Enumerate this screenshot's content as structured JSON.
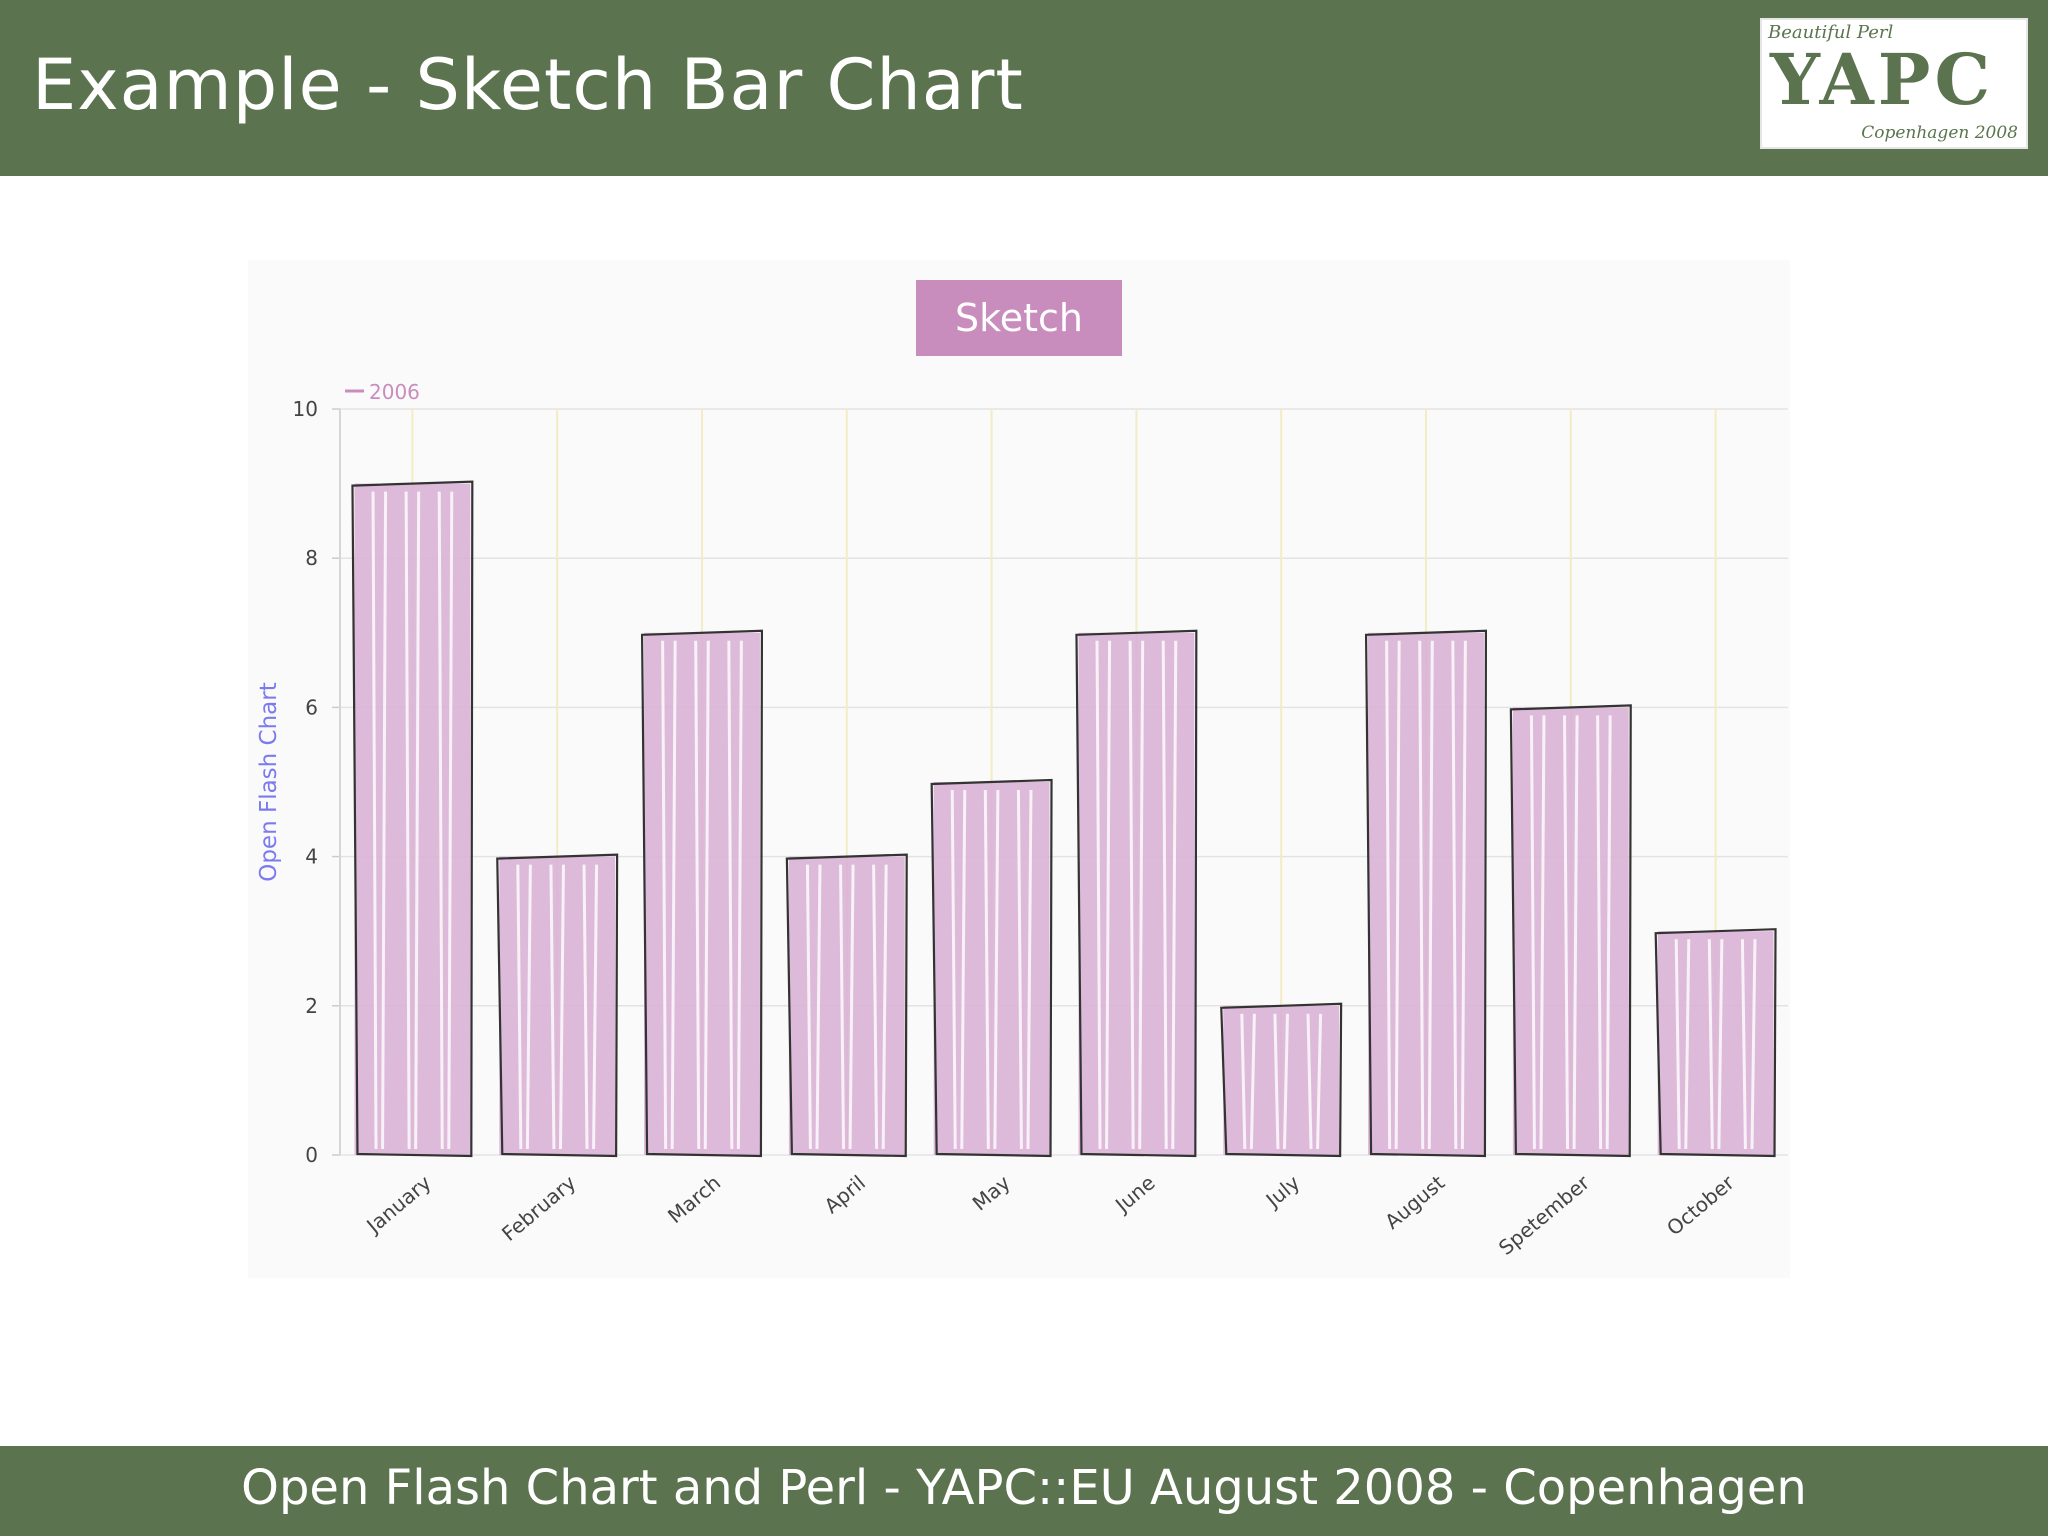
{
  "slide": {
    "title": "Example - Sketch Bar Chart",
    "footer": "Open Flash Chart and Perl - YAPC::EU August 2008 - Copenhagen",
    "logo": {
      "top_text": "Beautiful Perl",
      "mark": "YAPC",
      "bottom_text": "Copenhagen 2008"
    }
  },
  "colors": {
    "header_bg": "#5b744f",
    "bar_fill": "#d9b3d5",
    "title_box": "#c98dbd",
    "ylabel": "#7b7bf0",
    "legend": "#c98dbd"
  },
  "chart_data": {
    "type": "bar",
    "title": "Sketch",
    "ylabel": "Open Flash Chart",
    "xlabel": "",
    "legend_position": "top-left",
    "grid": true,
    "ylim": [
      0,
      10
    ],
    "yticks": [
      0,
      2,
      4,
      6,
      8,
      10
    ],
    "categories": [
      "January",
      "February",
      "March",
      "April",
      "May",
      "June",
      "July",
      "August",
      "Spetember",
      "October"
    ],
    "series": [
      {
        "name": "2006",
        "values": [
          9,
          4,
          7,
          4,
          5,
          7,
          2,
          7,
          6,
          3
        ]
      }
    ]
  }
}
